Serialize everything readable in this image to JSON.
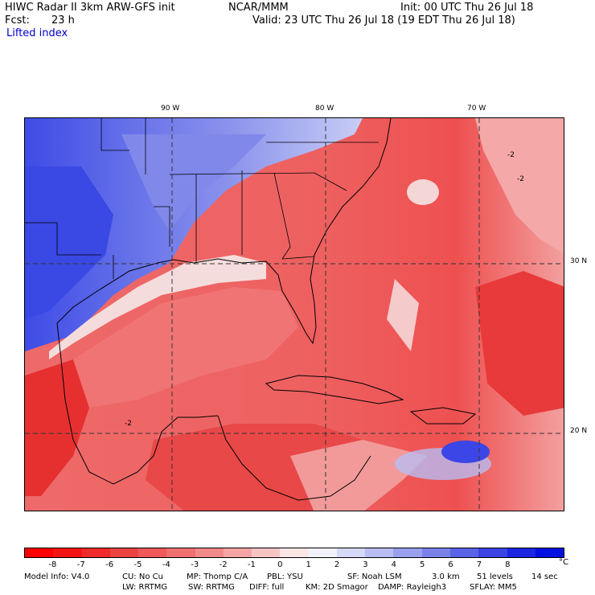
{
  "header": {
    "model_title": "HIWC Radar II 3km ARW-GFS init",
    "org": "NCAR/MMM",
    "init": "Init: 00 UTC Thu 26 Jul 18",
    "fcst_label": "Fcst:",
    "fcst_value": "23 h",
    "valid": "Valid: 23 UTC Thu 26 Jul 18 (19 EDT Thu 26 Jul 18)",
    "field_name": "Lifted index"
  },
  "map": {
    "lon_labels": [
      "90 W",
      "80 W",
      "70 W"
    ],
    "lat_labels": [
      "30 N",
      "20 N"
    ],
    "contour_labels": [
      "-2",
      "-2",
      "-2"
    ],
    "colors": {
      "land_stable": "#5060e8",
      "neutral": "#f4dada",
      "mild": "#f39a9a",
      "moderate": "#ee6666",
      "strong": "#e43535",
      "ocean_deep": "#f07e7e"
    }
  },
  "legend": {
    "unit": "°C",
    "ticks": [
      "-8",
      "-7",
      "-6",
      "-5",
      "-4",
      "-3",
      "-2",
      "-1",
      "0",
      "1",
      "2",
      "3",
      "4",
      "5",
      "6",
      "7",
      "8"
    ],
    "colors": [
      "#ff0000",
      "#f41313",
      "#ee2a2a",
      "#ed4242",
      "#ef5959",
      "#f07070",
      "#f28a8a",
      "#f4a4a4",
      "#f7c4c4",
      "#fbe6e6",
      "#f2f2fc",
      "#d6d8f8",
      "#b8bdf3",
      "#9aa0ee",
      "#7a82ea",
      "#5a62e6",
      "#3a44e2",
      "#1a26e0",
      "#0010e0"
    ]
  },
  "footer": {
    "line1": [
      "Model Info: V4.0",
      "CU: No Cu",
      "MP: Thomp C/A",
      "PBL: YSU",
      "SF: Noah LSM",
      "3.0 km",
      "51 levels",
      "14 sec"
    ],
    "line2": [
      "LW: RRTMG",
      "SW: RRTMG",
      "DIFF: full",
      "KM: 2D Smagor",
      "DAMP: Rayleigh3",
      "SFLAY: MM5"
    ]
  }
}
